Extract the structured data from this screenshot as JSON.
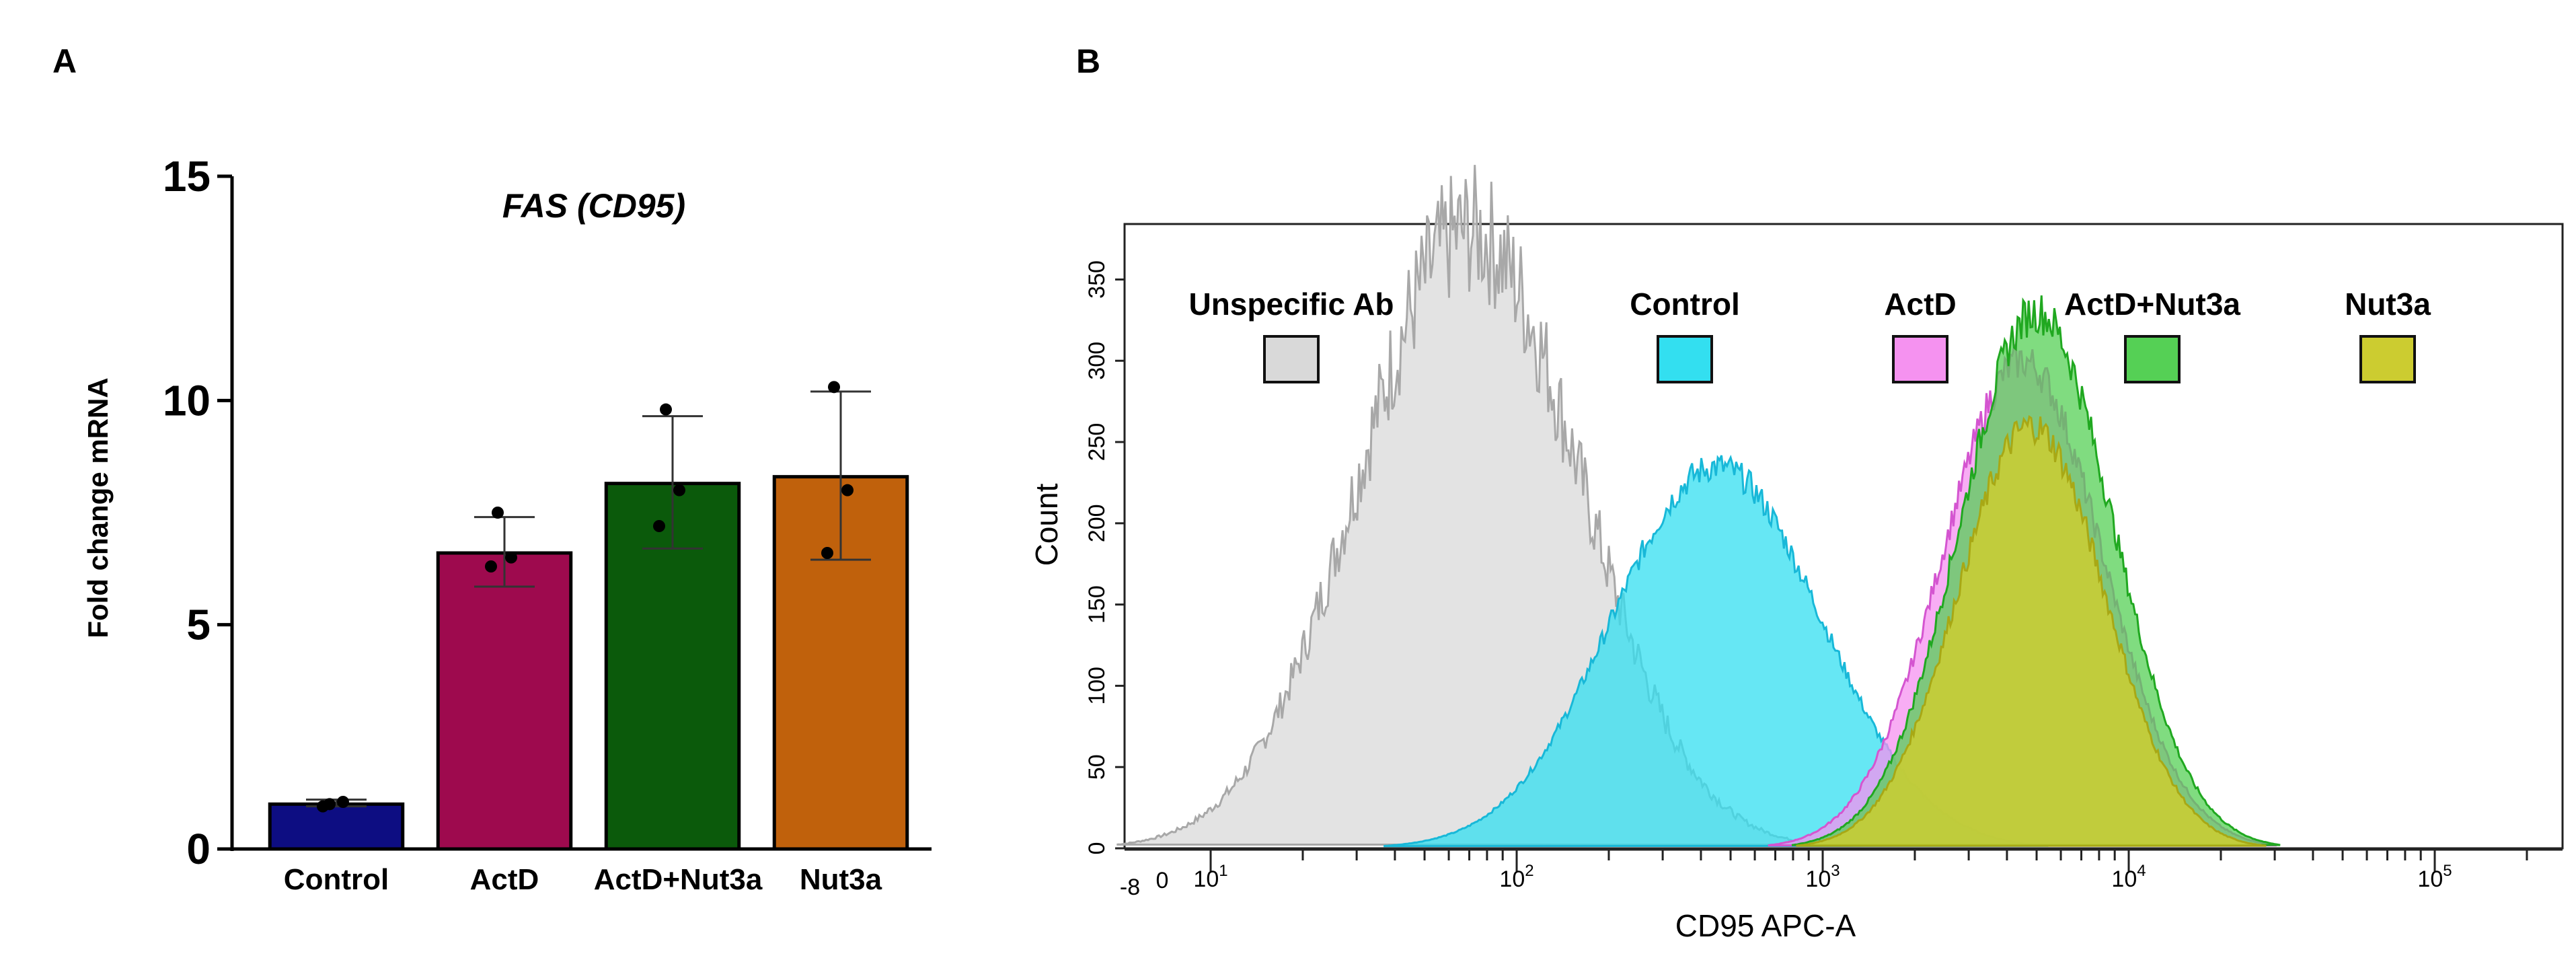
{
  "chart_data": [
    {
      "panel_label": "A",
      "type": "bar",
      "title": "FAS (CD95)",
      "xlabel": "",
      "ylabel": "Fold change mRNA",
      "ylim": [
        0,
        15
      ],
      "yticks": [
        "0",
        "5",
        "10",
        "15"
      ],
      "categories": [
        "Control",
        "ActD",
        "ActD+Nut3a",
        "Nut3a"
      ],
      "values": [
        1.0,
        6.6,
        8.15,
        8.3
      ],
      "error_low": [
        0.95,
        5.85,
        6.7,
        6.45
      ],
      "error_high": [
        1.1,
        7.4,
        9.65,
        10.2
      ],
      "replicates": [
        [
          1.0,
          1.05,
          0.95
        ],
        [
          7.5,
          6.5,
          6.3
        ],
        [
          9.8,
          8.0,
          7.2
        ],
        [
          10.3,
          8.0,
          6.6
        ]
      ],
      "colors": [
        "#0d0d82",
        "#9e0a4e",
        "#0b5a0b",
        "#c0610c"
      ]
    },
    {
      "panel_label": "B",
      "type": "area",
      "xlabel": "CD95 APC-A",
      "ylabel": "Count",
      "ylim": [
        0,
        380
      ],
      "yticks": [
        "0",
        "50",
        "100",
        "150",
        "200",
        "250",
        "300",
        "350"
      ],
      "x_scale": "log",
      "xtick_labels": [
        "-8",
        "0",
        "10^1",
        "10^2",
        "10^3",
        "10^4",
        "10^5"
      ],
      "series": [
        {
          "name": "Unspecific Ab",
          "color": "#d9d9d9",
          "peak_x": 70,
          "peak_count": 380
        },
        {
          "name": "Control",
          "color": "#33dff0",
          "peak_x": 450,
          "peak_count": 235
        },
        {
          "name": "ActD",
          "color": "#f592f0",
          "peak_x": 4500,
          "peak_count": 300
        },
        {
          "name": "ActD+Nut3a",
          "color": "#55d055",
          "peak_x": 5000,
          "peak_count": 330
        },
        {
          "name": "Nut3a",
          "color": "#cccc30",
          "peak_x": 4800,
          "peak_count": 260
        }
      ]
    }
  ]
}
